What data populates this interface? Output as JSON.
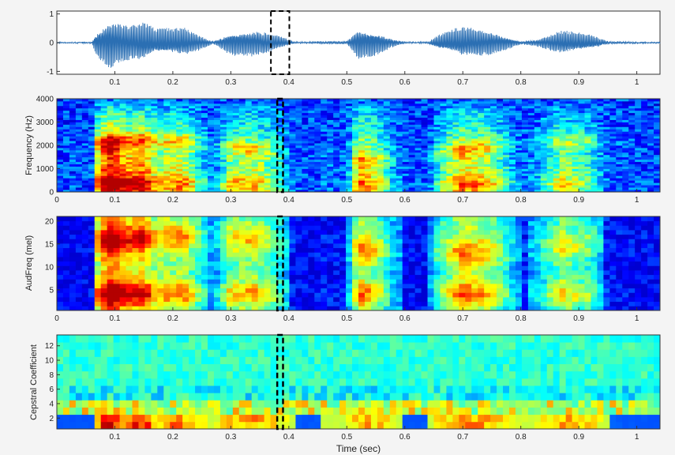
{
  "chart_data": [
    {
      "type": "line",
      "title": "",
      "xlabel": "",
      "ylabel": "",
      "xlim": [
        0,
        1.04
      ],
      "ylim": [
        -1.1,
        1.1
      ],
      "xticks": [
        0.1,
        0.2,
        0.3,
        0.4,
        0.5,
        0.6,
        0.7,
        0.8,
        0.9,
        1
      ],
      "xtick_labels": [
        "0.1",
        "0.2",
        "0.3",
        "0.4",
        "0.5",
        "0.6",
        "0.7",
        "0.8",
        "0.9",
        "1"
      ],
      "yticks": [
        -1,
        0,
        1
      ],
      "ytick_labels": [
        "-1",
        "0",
        "1"
      ],
      "series": [
        {
          "color": "#2b6fb3",
          "envelope_x": [
            0.0,
            0.06,
            0.07,
            0.09,
            0.12,
            0.15,
            0.17,
            0.22,
            0.25,
            0.27,
            0.3,
            0.34,
            0.37,
            0.39,
            0.41,
            0.44,
            0.46,
            0.48,
            0.5,
            0.52,
            0.55,
            0.58,
            0.6,
            0.64,
            0.66,
            0.7,
            0.74,
            0.77,
            0.8,
            0.83,
            0.87,
            0.92,
            0.95,
            1.04
          ],
          "envelope_amp": [
            0.02,
            0.02,
            0.55,
            0.95,
            0.7,
            0.75,
            0.5,
            0.55,
            0.25,
            0.05,
            0.45,
            0.5,
            0.35,
            0.2,
            0.03,
            0.03,
            0.05,
            0.05,
            0.05,
            0.6,
            0.45,
            0.15,
            0.03,
            0.03,
            0.3,
            0.6,
            0.5,
            0.3,
            0.05,
            0.15,
            0.45,
            0.3,
            0.05,
            0.02
          ]
        }
      ]
    },
    {
      "type": "heatmap",
      "title": "",
      "xlabel": "",
      "ylabel": "Frequency (Hz)",
      "xlim": [
        0,
        1.04
      ],
      "ylim": [
        0,
        4000
      ],
      "xticks": [
        0,
        0.1,
        0.2,
        0.3,
        0.4,
        0.5,
        0.6,
        0.7,
        0.8,
        0.9,
        1
      ],
      "xtick_labels": [
        "0",
        "0.1",
        "0.2",
        "0.3",
        "0.4",
        "0.5",
        "0.6",
        "0.7",
        "0.8",
        "0.9",
        "1"
      ],
      "yticks": [
        0,
        1000,
        2000,
        3000,
        4000
      ],
      "ytick_labels": [
        "0",
        "1000",
        "2000",
        "3000",
        "4000"
      ],
      "colormap": "jet"
    },
    {
      "type": "heatmap",
      "title": "",
      "xlabel": "",
      "ylabel": "AudFreq (mel)",
      "xlim": [
        0,
        1.04
      ],
      "ylim": [
        0.5,
        21
      ],
      "xticks": [
        0,
        0.1,
        0.2,
        0.3,
        0.4,
        0.5,
        0.6,
        0.7,
        0.8,
        0.9,
        1
      ],
      "xtick_labels": [
        "0",
        "0.1",
        "0.2",
        "0.3",
        "0.4",
        "0.5",
        "0.6",
        "0.7",
        "0.8",
        "0.9",
        "1"
      ],
      "yticks": [
        5,
        10,
        15,
        20
      ],
      "ytick_labels": [
        "5",
        "10",
        "15",
        "20"
      ],
      "colormap": "jet"
    },
    {
      "type": "heatmap",
      "title": "",
      "xlabel": "Time (sec)",
      "ylabel": "Cepstral Coefficient",
      "xlim": [
        0,
        1.04
      ],
      "ylim": [
        0.5,
        13.5
      ],
      "xticks": [
        0.1,
        0.2,
        0.3,
        0.4,
        0.5,
        0.6,
        0.7,
        0.8,
        0.9,
        1
      ],
      "xtick_labels": [
        "0.1",
        "0.2",
        "0.3",
        "0.4",
        "0.5",
        "0.6",
        "0.7",
        "0.8",
        "0.9",
        "1"
      ],
      "yticks": [
        2,
        4,
        6,
        8,
        10,
        12
      ],
      "ytick_labels": [
        "2",
        "4",
        "6",
        "8",
        "10",
        "12"
      ],
      "colormap": "jet"
    }
  ],
  "highlight": {
    "x_range_sec": [
      0.38,
      0.39
    ],
    "style": "dashed",
    "color": "#000000"
  }
}
